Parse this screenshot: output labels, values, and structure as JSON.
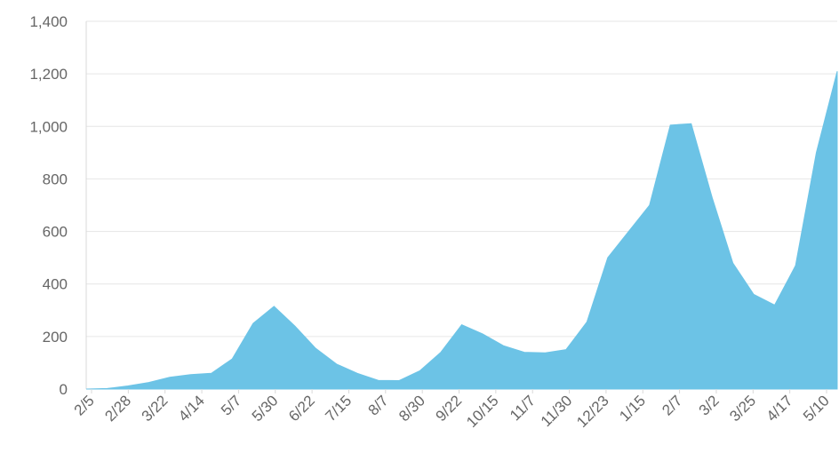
{
  "chart_data": {
    "type": "area",
    "title": "",
    "xlabel": "",
    "ylabel": "",
    "ylim": [
      0,
      1400
    ],
    "yticks": [
      "0",
      "200",
      "400",
      "600",
      "800",
      "1,000",
      "1,200",
      "1,400"
    ],
    "xticks": [
      "2/5",
      "2/28",
      "3/22",
      "4/14",
      "5/7",
      "5/30",
      "6/22",
      "7/15",
      "8/7",
      "8/30",
      "9/22",
      "10/15",
      "11/7",
      "11/30",
      "12/23",
      "1/15",
      "2/7",
      "3/2",
      "3/25",
      "4/17",
      "5/10"
    ],
    "grid": true,
    "color": "#6cc3e6",
    "series": [
      {
        "values": [
          0,
          2,
          12,
          25,
          45,
          55,
          60,
          115,
          250,
          315,
          240,
          155,
          95,
          60,
          33,
          32,
          70,
          140,
          245,
          210,
          165,
          140,
          138,
          150,
          255,
          500,
          600,
          700,
          1005,
          1010,
          730,
          480,
          360,
          320,
          470,
          900,
          1210
        ]
      }
    ]
  }
}
